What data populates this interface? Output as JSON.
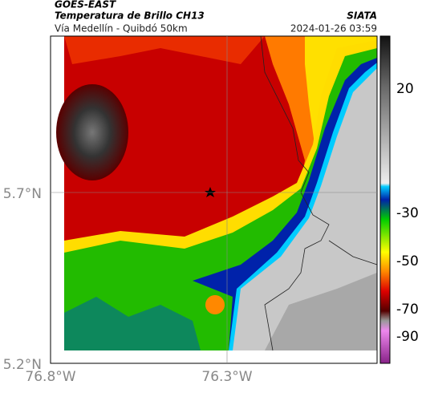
{
  "header": {
    "source": "GOES-EAST",
    "title": "Temperatura de Brillo CH13",
    "subtitle": "Vía Medellín - Quibdó 50km",
    "agency": "SIATA",
    "timestamp": "2024-01-26 03:59"
  },
  "axes": {
    "x_labels": [
      "76.8°W",
      "76.3°W"
    ],
    "y_labels": [
      "5.7°N",
      "5.2°N"
    ]
  },
  "colorbar": {
    "labels": [
      "20",
      "-30",
      "-50",
      "-70",
      "-90"
    ]
  }
}
